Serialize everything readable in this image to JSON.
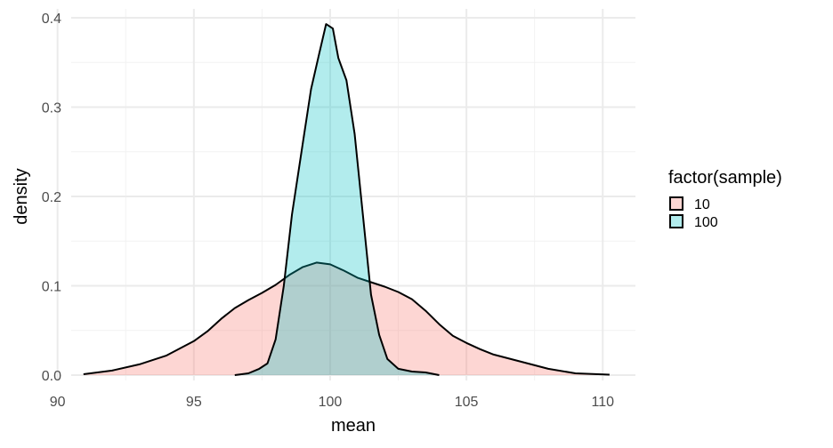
{
  "chart_data": {
    "type": "area",
    "subtype": "density",
    "title": "",
    "xlabel": "mean",
    "ylabel": "density",
    "xlim": [
      90.5,
      111.2
    ],
    "ylim": [
      -0.006,
      0.41
    ],
    "x_ticks": [
      90,
      95,
      100,
      105,
      110
    ],
    "x_tick_labels": [
      "90",
      "95",
      "100",
      "105",
      "110"
    ],
    "y_ticks": [
      0.0,
      0.1,
      0.2,
      0.3,
      0.4
    ],
    "y_tick_labels": [
      "0.0",
      "0.1",
      "0.2",
      "0.3",
      "0.4"
    ],
    "grid": true,
    "legend": {
      "title": "factor(sample)",
      "position": "right"
    },
    "series": [
      {
        "name": "10",
        "fill": "#F8766D",
        "fill_opacity": 0.3,
        "points": [
          [
            90.95,
            0.001
          ],
          [
            92.0,
            0.005
          ],
          [
            93.0,
            0.012
          ],
          [
            94.0,
            0.022
          ],
          [
            95.0,
            0.038
          ],
          [
            95.5,
            0.049
          ],
          [
            96.0,
            0.063
          ],
          [
            96.5,
            0.075
          ],
          [
            97.0,
            0.084
          ],
          [
            97.5,
            0.092
          ],
          [
            98.0,
            0.101
          ],
          [
            98.5,
            0.112
          ],
          [
            99.0,
            0.121
          ],
          [
            99.5,
            0.126
          ],
          [
            100.0,
            0.124
          ],
          [
            100.5,
            0.117
          ],
          [
            101.0,
            0.109
          ],
          [
            101.5,
            0.104
          ],
          [
            102.0,
            0.099
          ],
          [
            102.5,
            0.093
          ],
          [
            103.0,
            0.085
          ],
          [
            103.5,
            0.072
          ],
          [
            104.0,
            0.057
          ],
          [
            104.5,
            0.044
          ],
          [
            105.0,
            0.036
          ],
          [
            105.5,
            0.029
          ],
          [
            106.0,
            0.023
          ],
          [
            107.0,
            0.015
          ],
          [
            108.0,
            0.007
          ],
          [
            109.0,
            0.002
          ],
          [
            110.25,
            0.0005
          ]
        ]
      },
      {
        "name": "100",
        "fill": "#00BFC4",
        "fill_opacity": 0.3,
        "points": [
          [
            96.5,
            0.0
          ],
          [
            97.0,
            0.002
          ],
          [
            97.4,
            0.007
          ],
          [
            97.7,
            0.013
          ],
          [
            98.0,
            0.04
          ],
          [
            98.3,
            0.1
          ],
          [
            98.6,
            0.18
          ],
          [
            99.0,
            0.26
          ],
          [
            99.3,
            0.32
          ],
          [
            99.6,
            0.36
          ],
          [
            99.85,
            0.393
          ],
          [
            100.1,
            0.388
          ],
          [
            100.3,
            0.355
          ],
          [
            100.6,
            0.33
          ],
          [
            100.9,
            0.27
          ],
          [
            101.2,
            0.18
          ],
          [
            101.5,
            0.09
          ],
          [
            101.8,
            0.045
          ],
          [
            102.1,
            0.018
          ],
          [
            102.5,
            0.007
          ],
          [
            103.0,
            0.004
          ],
          [
            103.5,
            0.003
          ],
          [
            104.0,
            0.0
          ]
        ]
      }
    ]
  }
}
